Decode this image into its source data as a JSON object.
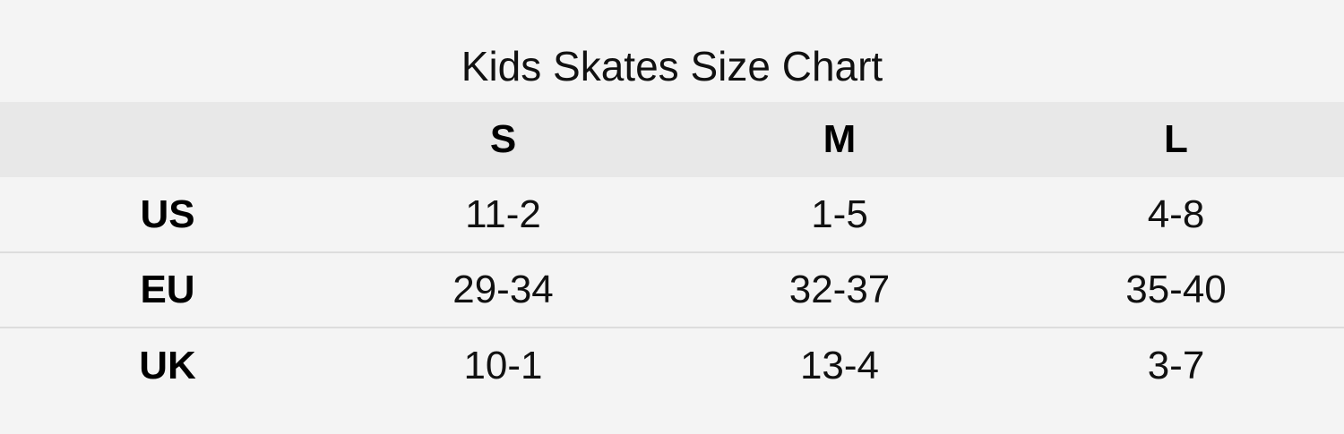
{
  "chart_data": {
    "type": "table",
    "title": "Kids Skates Size Chart",
    "columns": [
      "",
      "S",
      "M",
      "L"
    ],
    "rows": [
      {
        "label": "US",
        "values": [
          "11-2",
          "1-5",
          "4-8"
        ]
      },
      {
        "label": "EU",
        "values": [
          "29-34",
          "32-37",
          "35-40"
        ]
      },
      {
        "label": "UK",
        "values": [
          "10-1",
          "13-4",
          "3-7"
        ]
      }
    ]
  },
  "colors": {
    "background": "#f4f4f4",
    "header_band": "#e8e8e8",
    "divider": "#dddddd",
    "text": "#111111"
  }
}
